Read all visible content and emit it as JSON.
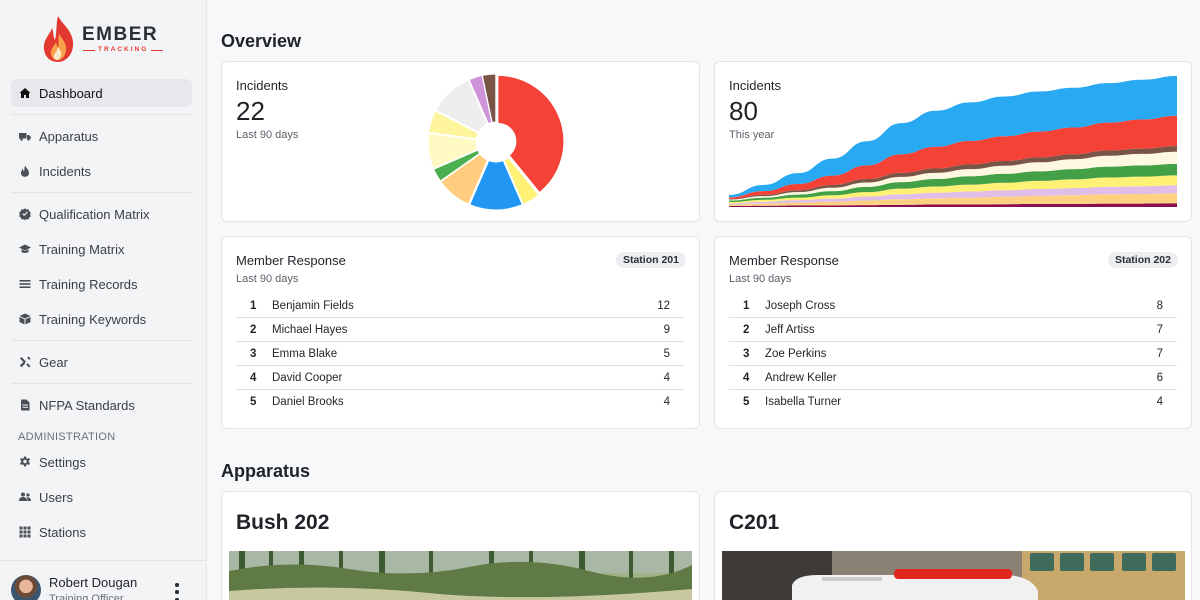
{
  "brand": {
    "name": "EMBER",
    "tagline": "TRACKING"
  },
  "sidebar": {
    "items": [
      {
        "label": "Dashboard",
        "icon": "home-icon",
        "active": true
      },
      {
        "label": "Apparatus",
        "icon": "truck-icon"
      },
      {
        "label": "Incidents",
        "icon": "flame-icon"
      },
      {
        "label": "Qualification Matrix",
        "icon": "badge-check-icon"
      },
      {
        "label": "Training Matrix",
        "icon": "graduation-cap-icon"
      },
      {
        "label": "Training Records",
        "icon": "list-icon"
      },
      {
        "label": "Training Keywords",
        "icon": "box-icon"
      },
      {
        "label": "Gear",
        "icon": "tools-icon"
      },
      {
        "label": "NFPA Standards",
        "icon": "document-icon"
      }
    ],
    "admin_header": "ADMINISTRATION",
    "admin_items": [
      {
        "label": "Settings",
        "icon": "gear-icon"
      },
      {
        "label": "Users",
        "icon": "users-icon"
      },
      {
        "label": "Stations",
        "icon": "grid-icon"
      }
    ],
    "user": {
      "name": "Robert Dougan",
      "role": "Training Officer"
    }
  },
  "overview": {
    "title": "Overview",
    "incidents_90": {
      "label": "Incidents",
      "value": "22",
      "sub": "Last 90 days",
      "chart_data": {
        "type": "pie",
        "values": [
          36,
          4,
          12,
          8,
          3,
          8,
          5,
          10,
          3,
          3
        ],
        "colors": [
          "#f44336",
          "#fff176",
          "#2196f3",
          "#ffcc80",
          "#4caf50",
          "#fff9c4",
          "#fff59d",
          "#eeeeee",
          "#ce93d8",
          "#795548"
        ]
      }
    },
    "incidents_year": {
      "label": "Incidents",
      "value": "80",
      "sub": "This year",
      "chart_data": {
        "type": "area",
        "stacked": true,
        "x": [
          0,
          1,
          2,
          3,
          4,
          5,
          6,
          7,
          8,
          9,
          10,
          11,
          12,
          13
        ],
        "series": [
          {
            "color": "#880e4f",
            "values": [
              0.3,
              0.4,
              0.5,
              0.5,
              0.6,
              0.7,
              0.8,
              0.8,
              0.9,
              1.0,
              1.0,
              1.1,
              1.1,
              1.2
            ]
          },
          {
            "color": "#ffd180",
            "values": [
              0.5,
              0.7,
              0.9,
              1.2,
              1.5,
              1.8,
              2.0,
              2.2,
              2.4,
              2.6,
              2.8,
              3.0,
              3.1,
              3.2
            ]
          },
          {
            "color": "#e1bee7",
            "values": [
              0.4,
              0.6,
              0.8,
              1.0,
              1.3,
              1.6,
              1.8,
              2.0,
              2.1,
              2.2,
              2.3,
              2.4,
              2.5,
              2.6
            ]
          },
          {
            "color": "#fff176",
            "values": [
              0.4,
              0.6,
              0.8,
              1.1,
              1.4,
              1.8,
              2.0,
              2.2,
              2.4,
              2.6,
              2.8,
              3.0,
              3.1,
              3.2
            ]
          },
          {
            "color": "#43a047",
            "values": [
              0.5,
              0.7,
              1.0,
              1.3,
              1.7,
              2.1,
              2.4,
              2.7,
              2.9,
              3.1,
              3.3,
              3.5,
              3.6,
              3.7
            ]
          },
          {
            "color": "#fff8e1",
            "values": [
              0.3,
              0.5,
              0.8,
              1.1,
              1.4,
              1.7,
              2.0,
              2.3,
              2.6,
              2.9,
              3.2,
              3.5,
              3.7,
              3.9
            ]
          },
          {
            "color": "#795548",
            "values": [
              0.2,
              0.4,
              0.6,
              0.9,
              1.1,
              1.3,
              1.4,
              1.5,
              1.5,
              1.6,
              1.6,
              1.7,
              1.7,
              1.8
            ]
          },
          {
            "color": "#f44336",
            "values": [
              0.5,
              1.2,
              2.0,
              3.0,
              4.4,
              6.0,
              7.0,
              7.6,
              8.0,
              8.3,
              8.6,
              9.0,
              9.4,
              9.8
            ]
          },
          {
            "color": "#29a9f2",
            "values": [
              0.8,
              2.0,
              3.5,
              5.5,
              7.8,
              10.0,
              11.6,
              12.4,
              12.8,
              12.9,
              12.8,
              12.7,
              12.8,
              12.8
            ]
          }
        ]
      }
    }
  },
  "member_response": [
    {
      "title": "Member Response",
      "sub": "Last 90 days",
      "badge": "Station 201",
      "rows": [
        {
          "rank": "1",
          "name": "Benjamin Fields",
          "count": "12"
        },
        {
          "rank": "2",
          "name": "Michael Hayes",
          "count": "9"
        },
        {
          "rank": "3",
          "name": "Emma Blake",
          "count": "5"
        },
        {
          "rank": "4",
          "name": "David Cooper",
          "count": "4"
        },
        {
          "rank": "5",
          "name": "Daniel Brooks",
          "count": "4"
        }
      ]
    },
    {
      "title": "Member Response",
      "sub": "Last 90 days",
      "badge": "Station 202",
      "rows": [
        {
          "rank": "1",
          "name": "Joseph Cross",
          "count": "8"
        },
        {
          "rank": "2",
          "name": "Jeff Artiss",
          "count": "7"
        },
        {
          "rank": "3",
          "name": "Zoe Perkins",
          "count": "7"
        },
        {
          "rank": "4",
          "name": "Andrew Keller",
          "count": "6"
        },
        {
          "rank": "5",
          "name": "Isabella Turner",
          "count": "4"
        }
      ]
    }
  ],
  "apparatus": {
    "title": "Apparatus",
    "cards": [
      {
        "name": "Bush 202"
      },
      {
        "name": "C201"
      }
    ]
  }
}
